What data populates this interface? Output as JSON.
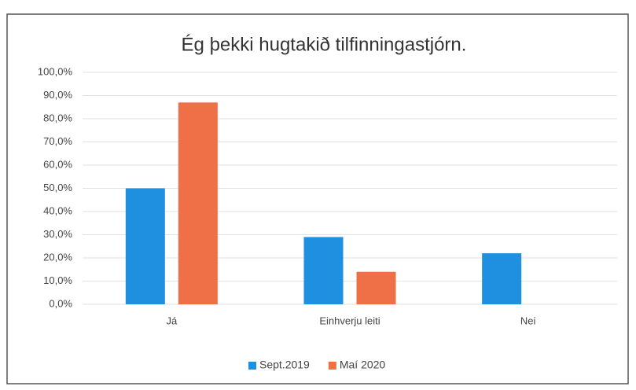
{
  "chart_data": {
    "type": "bar",
    "title": "Ég þekki hugtakið tilfinningastjórn.",
    "categories": [
      "Já",
      "Einhverju leiti",
      "Nei"
    ],
    "series": [
      {
        "name": "Sept.2019",
        "color": "#1f8fe0",
        "values": [
          50,
          29,
          22
        ]
      },
      {
        "name": "Maí 2020",
        "color": "#ef6f47",
        "values": [
          87,
          14,
          0
        ]
      }
    ],
    "ylim": [
      0,
      100
    ],
    "yticks": [
      {
        "value": 0,
        "label": "0,0%"
      },
      {
        "value": 10,
        "label": "10,0%"
      },
      {
        "value": 20,
        "label": "20,0%"
      },
      {
        "value": 30,
        "label": "30,0%"
      },
      {
        "value": 40,
        "label": "40,0%"
      },
      {
        "value": 50,
        "label": "50,0%"
      },
      {
        "value": 60,
        "label": "60,0%"
      },
      {
        "value": 70,
        "label": "70,0%"
      },
      {
        "value": 80,
        "label": "80,0%"
      },
      {
        "value": 90,
        "label": "90,0%"
      },
      {
        "value": 100,
        "label": "100,0%"
      }
    ],
    "grid": true,
    "legend": "bottom"
  }
}
